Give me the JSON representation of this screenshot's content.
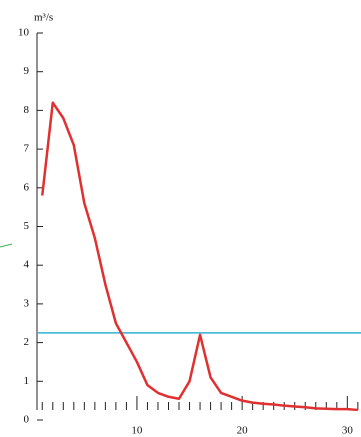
{
  "chart_data": {
    "type": "line",
    "y_unit": "m³/s",
    "x": [
      1,
      2,
      3,
      4,
      5,
      6,
      7,
      8,
      9,
      10,
      11,
      12,
      13,
      14,
      15,
      16,
      17,
      18,
      19,
      20,
      21,
      22,
      23,
      24,
      25,
      26,
      27,
      28,
      29,
      30,
      31
    ],
    "series": [
      {
        "color": "#e03030",
        "values": [
          5.8,
          8.2,
          7.8,
          7.1,
          5.6,
          4.7,
          3.5,
          2.5,
          2.0,
          1.5,
          0.9,
          0.7,
          0.6,
          0.55,
          1.0,
          2.2,
          1.1,
          0.7,
          0.6,
          0.5,
          0.45,
          0.42,
          0.4,
          0.37,
          0.35,
          0.33,
          0.3,
          0.29,
          0.28,
          0.28,
          0.26
        ]
      }
    ],
    "reference_line": {
      "value": 2.25,
      "color": "#30b0d8"
    },
    "xlim": [
      0.5,
      31.3
    ],
    "ylim": [
      0,
      10
    ],
    "xticks": [
      10,
      20,
      30
    ],
    "xminorticks": [
      1,
      2,
      3,
      4,
      5,
      6,
      7,
      8,
      9,
      11,
      12,
      13,
      14,
      15,
      16,
      17,
      18,
      19,
      21,
      22,
      23,
      24,
      25,
      26,
      27,
      28,
      29,
      31
    ],
    "yticks": [
      0,
      1,
      2,
      3,
      4,
      5,
      6,
      7,
      8,
      9,
      10
    ]
  }
}
